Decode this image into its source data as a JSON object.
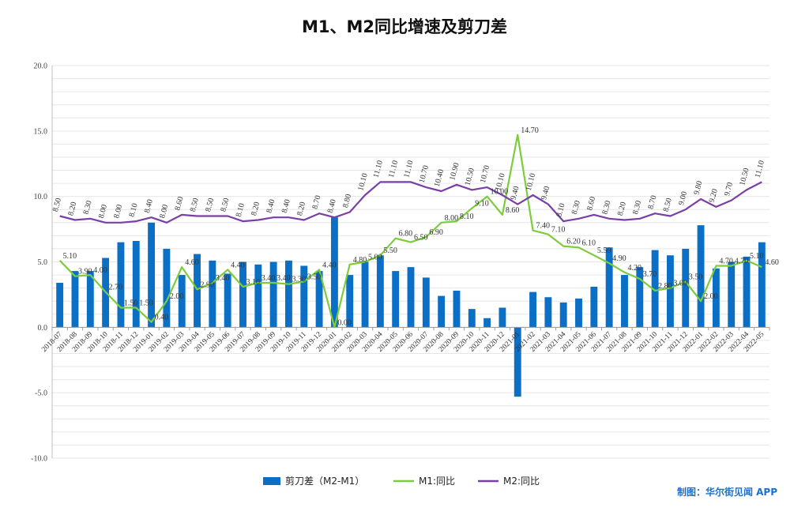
{
  "chart_data": {
    "type": "bar+line",
    "title": "M1、M2同比增速及剪刀差",
    "categories": [
      "2018-07",
      "2018-08",
      "2018-09",
      "2018-10",
      "2018-11",
      "2018-12",
      "2019-01",
      "2019-02",
      "2019-03",
      "2019-04",
      "2019-05",
      "2019-06",
      "2019-07",
      "2019-08",
      "2019-09",
      "2019-10",
      "2019-11",
      "2019-12",
      "2020-01",
      "2020-02",
      "2020-03",
      "2020-04",
      "2020-05",
      "2020-06",
      "2020-07",
      "2020-08",
      "2020-09",
      "2020-10",
      "2020-11",
      "2020-12",
      "2021-01",
      "2021-02",
      "2021-03",
      "2021-04",
      "2021-05",
      "2021-06",
      "2021-07",
      "2021-08",
      "2021-09",
      "2021-10",
      "2021-11",
      "2021-12",
      "2022-01",
      "2022-02",
      "2022-03",
      "2022-04",
      "2022-05"
    ],
    "ylim": [
      -10,
      20
    ],
    "yticks": [
      "-10.0",
      "-5.0",
      "0.0",
      "5.0",
      "10.0",
      "15.0",
      "20.0"
    ],
    "grid": true,
    "legend_position": "bottom",
    "series": [
      {
        "name": "剪刀差（M2-M1）",
        "type": "bar",
        "color": "#0b6fc6",
        "values": [
          3.4,
          4.3,
          4.3,
          5.3,
          6.5,
          6.6,
          8.0,
          6.0,
          4.0,
          5.6,
          5.1,
          4.1,
          5.0,
          4.8,
          5.0,
          5.1,
          4.7,
          4.3,
          8.4,
          4.0,
          5.0,
          5.5,
          4.3,
          4.6,
          3.8,
          2.4,
          2.8,
          1.4,
          0.7,
          1.5,
          -5.3,
          2.7,
          2.3,
          1.9,
          2.2,
          3.1,
          6.1,
          4.0,
          4.6,
          5.9,
          5.5,
          6.0,
          7.8,
          4.5,
          5.0,
          5.4,
          6.5
        ]
      },
      {
        "name": "M1:同比",
        "type": "line",
        "color": "#7ccc3c",
        "values": [
          5.1,
          3.9,
          4.0,
          2.7,
          1.5,
          1.5,
          0.4,
          2.0,
          4.6,
          2.9,
          3.4,
          4.4,
          3.1,
          3.4,
          3.4,
          3.3,
          3.5,
          4.4,
          0.0,
          4.8,
          5.0,
          5.5,
          6.8,
          6.5,
          6.9,
          8.0,
          8.1,
          9.1,
          10.0,
          8.6,
          14.7,
          7.4,
          7.1,
          6.2,
          6.1,
          5.5,
          4.9,
          4.2,
          3.7,
          2.8,
          3.0,
          3.5,
          2.0,
          4.7,
          4.7,
          5.1,
          4.6
        ]
      },
      {
        "name": "M2:同比",
        "type": "line",
        "color": "#7a3fa6",
        "values": [
          8.5,
          8.2,
          8.3,
          8.0,
          8.0,
          8.1,
          8.4,
          8.0,
          8.6,
          8.5,
          8.5,
          8.5,
          8.1,
          8.2,
          8.4,
          8.4,
          8.2,
          8.7,
          8.4,
          8.8,
          10.1,
          11.1,
          11.1,
          11.1,
          10.7,
          10.4,
          10.9,
          10.5,
          10.7,
          10.1,
          9.4,
          10.1,
          9.4,
          8.1,
          8.3,
          8.6,
          8.3,
          8.2,
          8.3,
          8.7,
          8.5,
          9.0,
          9.8,
          9.2,
          9.7,
          10.5,
          11.1
        ]
      }
    ],
    "m1_labels": [
      "5.10",
      "3.90",
      "4.00",
      "2.70",
      "1.50",
      "1.50",
      "0.40",
      "2.00",
      "4.60",
      "2.90",
      "3.40",
      "4.40",
      "3.10",
      "3.40",
      "3.40",
      "3.30",
      "3.50",
      "4.40",
      "0.00",
      "4.80",
      "5.00",
      "5.50",
      "6.80",
      "6.50",
      "6.90",
      "8.00",
      "8.10",
      "9.10",
      "10.00",
      "8.60",
      "14.70",
      "7.40",
      "7.10",
      "6.20",
      "6.10",
      "5.50",
      "4.90",
      "4.20",
      "3.70",
      "2.80",
      "3.00",
      "3.50",
      "2.00",
      "4.70",
      "4.70",
      "5.10",
      "4.60"
    ],
    "m2_labels": [
      "8.50",
      "8.20",
      "8.30",
      "8.00",
      "8.00",
      "8.10",
      "8.40",
      "8.00",
      "8.60",
      "8.50",
      "8.50",
      "8.50",
      "8.10",
      "8.20",
      "8.40",
      "8.40",
      "8.20",
      "8.70",
      "8.40",
      "8.80",
      "10.10",
      "11.10",
      "11.10",
      "11.10",
      "10.70",
      "10.40",
      "10.90",
      "10.50",
      "10.70",
      "10.10",
      "9.40",
      "10.10",
      "9.40",
      "8.10",
      "8.30",
      "8.60",
      "8.30",
      "8.20",
      "8.30",
      "8.70",
      "8.50",
      "9.00",
      "9.80",
      "9.20",
      "9.70",
      "10.50",
      "11.10"
    ]
  },
  "credit": "制图：华尔街见闻 APP"
}
